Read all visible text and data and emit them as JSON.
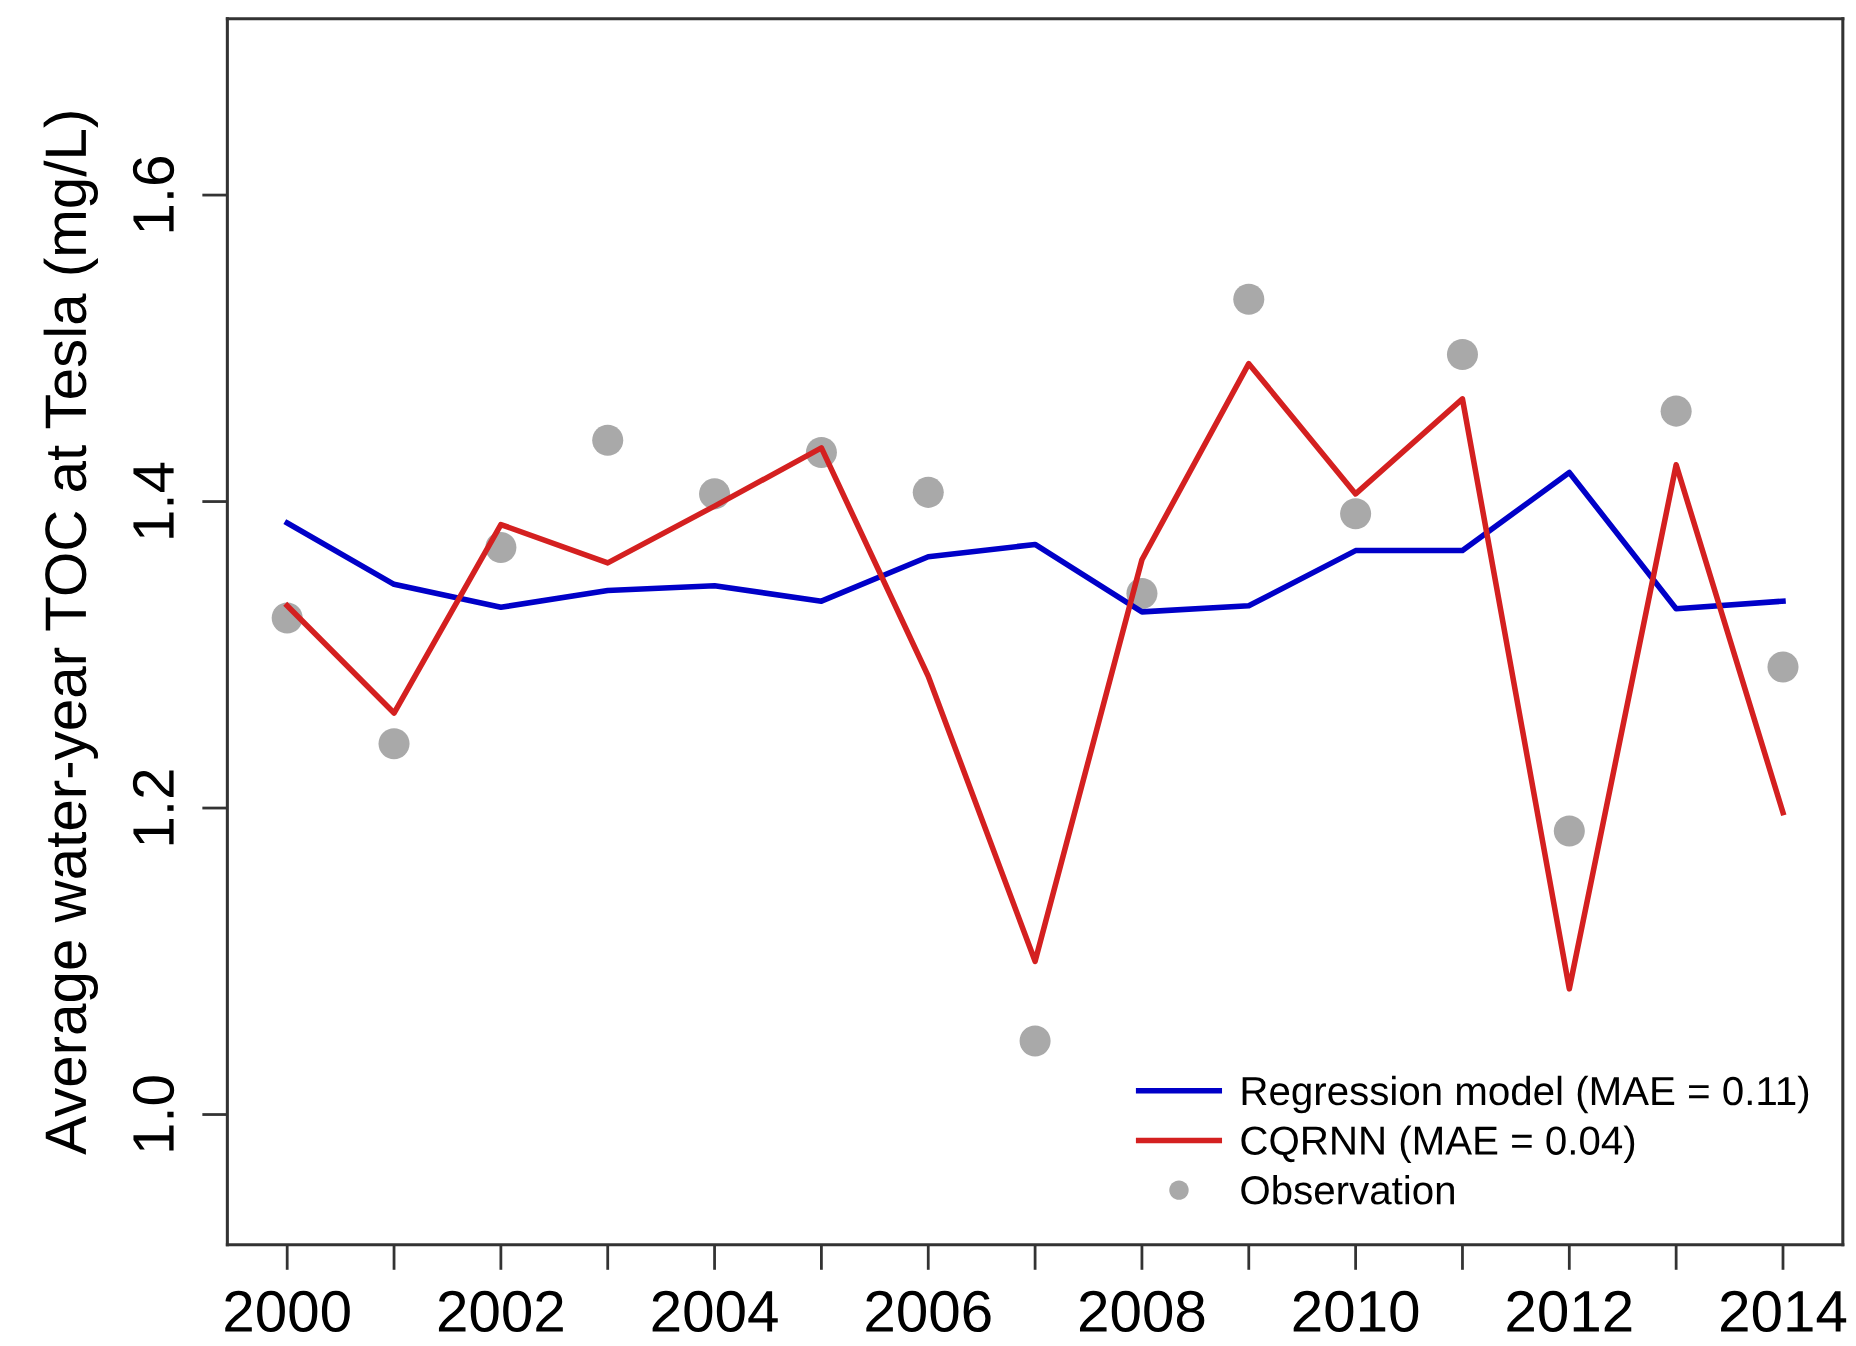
{
  "chart_data": {
    "type": "line",
    "ylabel": "Average water-year TOC at Tesla (mg/L)",
    "x": [
      2000,
      2001,
      2002,
      2003,
      2004,
      2005,
      2006,
      2007,
      2008,
      2009,
      2010,
      2011,
      2012,
      2013,
      2014
    ],
    "series": [
      {
        "name": "Regression model (MAE = 0.11)",
        "color": "#0000c8",
        "values": [
          1.386,
          1.346,
          1.331,
          1.342,
          1.345,
          1.335,
          1.364,
          1.372,
          1.328,
          1.332,
          1.368,
          1.368,
          1.419,
          1.33,
          1.335
        ]
      },
      {
        "name": "CQRNN (MAE = 0.04)",
        "color": "#d42020",
        "values": [
          1.332,
          1.262,
          1.385,
          1.36,
          1.397,
          1.435,
          1.286,
          1.1,
          1.362,
          1.49,
          1.405,
          1.467,
          1.082,
          1.424,
          1.197
        ]
      },
      {
        "name": "Observation",
        "type": "scatter",
        "marker": "circle",
        "color": "#a9a9a9",
        "values": [
          1.324,
          1.242,
          1.37,
          1.44,
          1.405,
          1.432,
          1.406,
          1.048,
          1.34,
          1.532,
          1.392,
          1.496,
          1.185,
          1.459,
          1.292
        ]
      }
    ],
    "xlim": [
      1999.44,
      2014.56
    ],
    "ylim": [
      0.915,
      1.715
    ],
    "xticks": [
      2000,
      {
        "value": 2001,
        "label": null
      },
      2002,
      {
        "value": 2003,
        "label": null
      },
      2004,
      {
        "value": 2005,
        "label": null
      },
      2006,
      {
        "value": 2007,
        "label": null
      },
      2008,
      {
        "value": 2009,
        "label": null
      },
      2010,
      {
        "value": 2011,
        "label": null
      },
      2012,
      {
        "value": 2013,
        "label": null
      },
      2014
    ],
    "yticks": [
      {
        "value": 1.0,
        "label": "1.0"
      },
      {
        "value": 1.2,
        "label": "1.2"
      },
      {
        "value": 1.4,
        "label": "1.4"
      },
      {
        "value": 1.6,
        "label": "1.6"
      }
    ],
    "legend": "bottom right"
  }
}
